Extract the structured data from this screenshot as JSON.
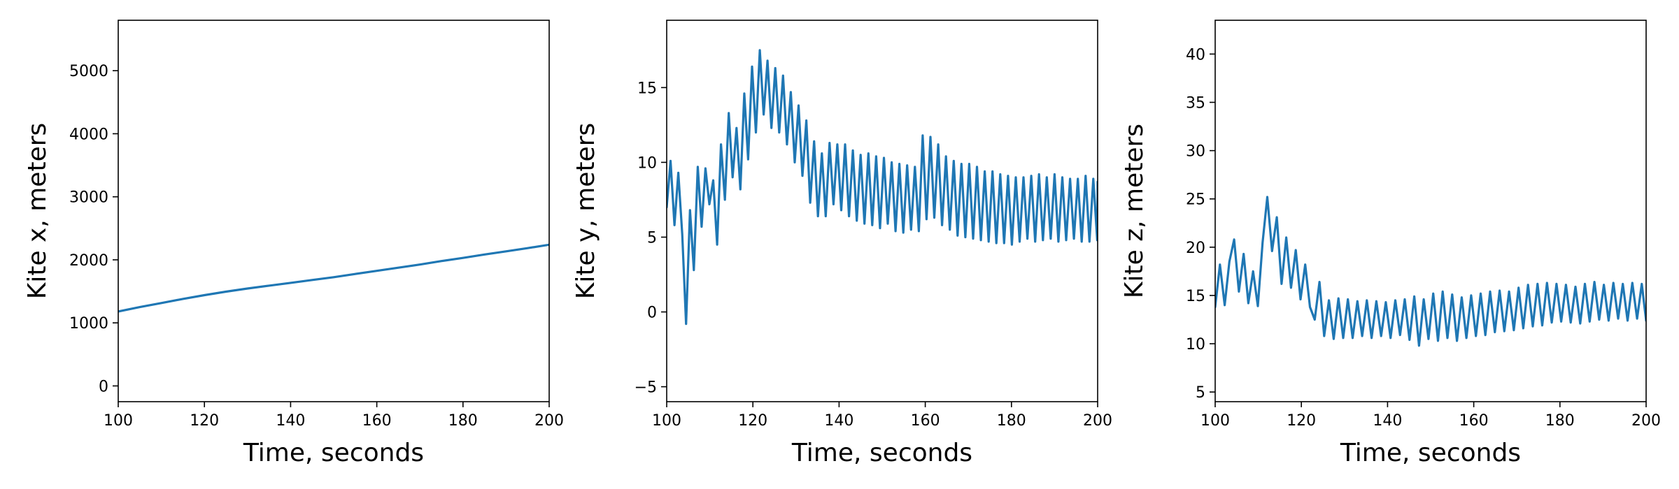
{
  "chart_data": [
    {
      "type": "line",
      "xlabel": "Time, seconds",
      "ylabel": "Kite x, meters",
      "xlim": [
        100,
        200
      ],
      "ylim": [
        -250,
        5800
      ],
      "xticks": [
        100,
        120,
        140,
        160,
        180,
        200
      ],
      "yticks": [
        0,
        1000,
        2000,
        3000,
        4000,
        5000
      ],
      "grid": false,
      "series": [
        {
          "color": "#1f77b4",
          "x": [
            100,
            105,
            110,
            115,
            120,
            125,
            130,
            135,
            140,
            145,
            150,
            155,
            160,
            165,
            170,
            175,
            180,
            185,
            190,
            195,
            200
          ],
          "y": [
            1180,
            1250,
            1315,
            1380,
            1440,
            1495,
            1545,
            1590,
            1635,
            1680,
            1725,
            1775,
            1825,
            1875,
            1925,
            1980,
            2030,
            2085,
            2135,
            2185,
            2240
          ]
        }
      ]
    },
    {
      "type": "line",
      "xlabel": "Time, seconds",
      "ylabel": "Kite y, meters",
      "xlim": [
        100,
        200
      ],
      "ylim": [
        -6,
        19.5
      ],
      "xticks": [
        100,
        120,
        140,
        160,
        180,
        200
      ],
      "yticks": [
        -5,
        0,
        5,
        10,
        15
      ],
      "grid": false,
      "series": [
        {
          "color": "#1f77b4",
          "x": [
            100,
            100.9,
            101.8,
            102.7,
            103.6,
            104.5,
            105.4,
            106.3,
            107.2,
            108.1,
            109,
            109.9,
            110.8,
            111.7,
            112.6,
            113.5,
            114.4,
            115.3,
            116.2,
            117.1,
            118,
            118.9,
            119.8,
            120.7,
            121.6,
            122.5,
            123.4,
            124.3,
            125.2,
            126.1,
            127,
            127.9,
            128.8,
            129.7,
            130.6,
            131.5,
            132.4,
            133.3,
            134.2,
            135.1,
            136,
            136.9,
            137.8,
            138.7,
            139.6,
            140.5,
            141.4,
            142.3,
            143.2,
            144.1,
            145,
            145.9,
            146.8,
            147.7,
            148.6,
            149.5,
            150.4,
            151.3,
            152.2,
            153.1,
            154,
            154.9,
            155.8,
            156.7,
            157.6,
            158.5,
            159.4,
            160.3,
            161.2,
            162.1,
            163,
            163.9,
            164.8,
            165.7,
            166.6,
            167.5,
            168.4,
            169.3,
            170.2,
            171.1,
            172,
            172.9,
            173.8,
            174.7,
            175.6,
            176.5,
            177.4,
            178.3,
            179.2,
            180.1,
            181,
            181.9,
            182.8,
            183.7,
            184.6,
            185.5,
            186.4,
            187.3,
            188.2,
            189.1,
            190,
            190.9,
            191.8,
            192.7,
            193.6,
            194.5,
            195.4,
            196.3,
            197.2,
            198.1,
            199,
            199.9,
            200
          ],
          "y": [
            7,
            10.1,
            5.8,
            9.3,
            5.2,
            -0.8,
            6.8,
            2.8,
            9.7,
            5.7,
            9.6,
            7.2,
            8.8,
            4.5,
            11.2,
            7.5,
            13.3,
            9,
            12.3,
            8.2,
            14.6,
            10.2,
            16.4,
            12,
            17.5,
            13.2,
            16.8,
            12.3,
            16.3,
            12,
            15.8,
            11.2,
            14.7,
            10,
            13.8,
            9.1,
            12.8,
            7.3,
            11.4,
            6.4,
            10.6,
            6.4,
            11.3,
            7.2,
            11.2,
            6.8,
            11.2,
            6.4,
            10.8,
            6.1,
            10.5,
            5.9,
            10.6,
            5.8,
            10.4,
            5.6,
            10.3,
            5.9,
            10,
            5.4,
            9.9,
            5.3,
            9.8,
            5.5,
            9.7,
            5.4,
            11.8,
            6.2,
            11.7,
            6.3,
            11.2,
            5.8,
            10.4,
            5.5,
            10.1,
            5.1,
            9.9,
            5,
            9.9,
            4.9,
            9.7,
            4.8,
            9.4,
            4.7,
            9.4,
            4.6,
            9.2,
            4.6,
            9.1,
            4.5,
            9,
            4.7,
            9,
            4.9,
            9.1,
            4.7,
            9.2,
            4.8,
            9,
            4.9,
            9.2,
            4.7,
            9.0,
            4.8,
            8.9,
            4.9,
            8.9,
            4.7,
            9.1,
            4.7,
            8.9,
            4.8,
            8.7
          ]
        }
      ]
    },
    {
      "type": "line",
      "xlabel": "Time, seconds",
      "ylabel": "Kite z, meters",
      "xlim": [
        100,
        200
      ],
      "ylim": [
        4,
        43.5
      ],
      "xticks": [
        100,
        120,
        140,
        160,
        180,
        200
      ],
      "yticks": [
        5,
        10,
        15,
        20,
        25,
        30,
        35,
        40
      ],
      "grid": false,
      "series": [
        {
          "color": "#1f77b4",
          "x": [
            100,
            101.1,
            102.2,
            103.3,
            104.4,
            105.5,
            106.6,
            107.7,
            108.8,
            109.9,
            111,
            112.1,
            113.2,
            114.3,
            115.4,
            116.5,
            117.6,
            118.7,
            119.8,
            120.9,
            122,
            123.1,
            124.2,
            125.3,
            126.4,
            127.5,
            128.6,
            129.7,
            130.8,
            131.9,
            133,
            134.1,
            135.2,
            136.3,
            137.4,
            138.5,
            139.6,
            140.7,
            141.8,
            142.9,
            144,
            145.1,
            146.2,
            147.3,
            148.4,
            149.5,
            150.6,
            151.7,
            152.8,
            153.9,
            155,
            156.1,
            157.2,
            158.3,
            159.4,
            160.5,
            161.6,
            162.7,
            163.8,
            164.9,
            166,
            167.1,
            168.2,
            169.3,
            170.4,
            171.5,
            172.6,
            173.7,
            174.8,
            175.9,
            177,
            178.1,
            179.2,
            180.3,
            181.4,
            182.5,
            183.6,
            184.7,
            185.8,
            186.9,
            188,
            189.1,
            190.2,
            191.3,
            192.4,
            193.5,
            194.6,
            195.7,
            196.8,
            197.9,
            199,
            200
          ],
          "y": [
            13.8,
            18.2,
            14,
            18.5,
            20.8,
            15.4,
            19.3,
            14.2,
            17.5,
            13.9,
            20.5,
            25.2,
            19.6,
            23.1,
            16.2,
            21,
            15.8,
            19.7,
            14.6,
            18.2,
            13.8,
            12.5,
            16.4,
            10.8,
            14.5,
            10.5,
            14.7,
            10.6,
            14.6,
            10.6,
            14.4,
            10.8,
            14.5,
            10.6,
            14.4,
            10.8,
            14.3,
            10.6,
            14.5,
            10.9,
            14.6,
            10.4,
            14.9,
            9.8,
            14.6,
            10.5,
            15.2,
            10.3,
            15.4,
            10.6,
            15.1,
            10.3,
            14.8,
            10.6,
            15,
            10.8,
            15.2,
            10.9,
            15.4,
            11.2,
            15.5,
            11.3,
            15.4,
            11.4,
            15.8,
            11.6,
            16.1,
            11.8,
            16.2,
            11.9,
            16.3,
            12.2,
            16.2,
            12.3,
            16.1,
            12.2,
            15.9,
            12.1,
            16.2,
            12.3,
            16.4,
            12.5,
            16.1,
            12.4,
            16.3,
            12.6,
            16.2,
            12.4,
            16.3,
            12.6,
            16.2,
            12.4
          ]
        }
      ]
    }
  ]
}
